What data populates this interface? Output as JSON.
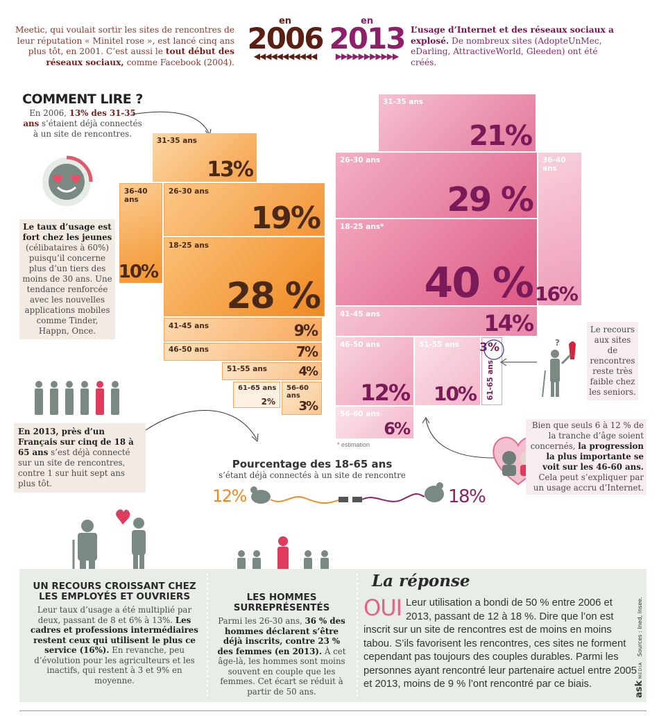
{
  "intro": {
    "left_text_1": "Meetic, qui voulait sortir les sites de rencontres de leur réputation « Minitel rose », est lancé cinq ans plus tôt, en 2001. C’est aussi le",
    "left_text_bold": "tout début des réseaux sociaux,",
    "left_text_2": "comme Facebook (2004).",
    "year_a_en": "en",
    "year_a": "2006",
    "year_b_en": "en",
    "year_b": "2013",
    "right_text_bold": "L’usage d’Internet et des réseaux sociaux a explosé.",
    "right_text_2": "De nombreux sites (AdopteUnMec, eDarling, AttractiveWorld, Gleeden) ont été créés."
  },
  "how_to_read": {
    "title": "COMMENT LIRE ?",
    "text_1": "En 2006,",
    "text_bold": "13% des 31-35 ans",
    "text_2": "s’étaient déjà connectés à un site de rencontres."
  },
  "chart_data": [
    {
      "type": "treemap",
      "title": "en 2006",
      "categories": [
        "31-35 ans",
        "36-40 ans",
        "26-30 ans",
        "18-25 ans",
        "41-45 ans",
        "46-50 ans",
        "51-55 ans",
        "61-65 ans",
        "56-60 ans"
      ],
      "values": [
        13,
        10,
        19,
        28,
        9,
        7,
        4,
        2,
        3
      ],
      "value_labels": [
        "13%",
        "10%",
        "19%",
        "28 %",
        "9%",
        "7%",
        "4%",
        "2%",
        "3%"
      ],
      "color": "#f39a3c"
    },
    {
      "type": "treemap",
      "title": "en 2013",
      "categories": [
        "31-35 ans",
        "26-30 ans",
        "36-40 ans",
        "18-25 ans*",
        "41-45 ans",
        "46-50 ans",
        "51-55 ans",
        "61-65 ans",
        "56-60 ans"
      ],
      "values": [
        21,
        29,
        16,
        40,
        14,
        12,
        10,
        3,
        6
      ],
      "value_labels": [
        "21%",
        "29 %",
        "16%",
        "40 %",
        "14%",
        "12%",
        "10%",
        "3%",
        "6%"
      ],
      "color": "#e0658c"
    }
  ],
  "estimation_note": "* estimation",
  "left_note_1": {
    "bold": "Le taux d’usage est fort chez les jeunes",
    "text": "(célibataires à 60%) puisqu’il concerne plus d’un tiers des moins de 30 ans. Une tendance renforcée avec les nouvelles applications mobiles comme Tinder, Happn, Once."
  },
  "left_note_2": {
    "bold": "En 2013, près d’un Français sur cinq de 18 à 65 ans",
    "text": "s’est déjà connecté sur un site de rencontres, contre 1 sur huit sept ans plus tôt."
  },
  "right_note_1": {
    "text": "Le recours aux sites de rencontres reste très faible chez les seniors."
  },
  "right_note_2": {
    "text_1": "Bien que seuls 6 à 12 % de la tranche d’âge soient concernés,",
    "bold": "la progression la plus importante se voit sur les 46-60 ans.",
    "text_2": "Cela peut s’expliquer par un usage accru d’Internet."
  },
  "overall": {
    "title": "Pourcentage des 18-65 ans",
    "subtitle": "s’étant déjà connectés à un site de rencontre",
    "value_2006": "12%",
    "value_2013": "18%"
  },
  "footer": {
    "col1_title": "UN RECOURS CROISSANT CHEZ LES EMPLOYÉS ET OUVRIERS",
    "col1_text_1": "Leur taux d’usage a été multiplié par deux, passant de 8 et 6% à 13%.",
    "col1_bold": "Les cadres et professions intermédiaires restent ceux qui utilisent le plus ce service (16%).",
    "col1_text_2": "En revanche, peu d’évolution pour les agriculteurs et les inactifs, qui restent à 3 et 9% en moyenne.",
    "col2_title": "LES HOMMES SURREPRÉSENTÉS",
    "col2_text_1": "Parmi les 26-30 ans,",
    "col2_bold": "36 % des hommes déclarent s’être déjà inscrits, contre 23 % des femmes (en 2013).",
    "col2_text_2": "À cet âge-là, les hommes sont moins souvent en couple que les femmes. Cet écart se réduit à partir de 50 ans.",
    "col3_title": "La réponse",
    "col3_oui": "OUI",
    "col3_text": "Leur utilisation a bondi de 50 % entre 2006 et 2013, passant de 12 à 18 %. Dire que l’on est inscrit sur un site de rencontres est de moins en moins tabou. S’ils favorisent les rencontres, ces sites ne forment cependant pas toujours des couples durables. Parmi les personnes ayant rencontré leur partenaire actuel entre 2005 et 2013, moins de 9 % l’ont rencontré par ce biais.",
    "sources": "Sources : Ined, Insee.",
    "logo": "ask",
    "logo_sub": "MEDIA"
  },
  "colors": {
    "orange": "#f39a3c",
    "pink": "#e0658c",
    "dark_red": "#7a1e16",
    "plum": "#7a1a58",
    "footer_bg": "#e8ede7"
  }
}
